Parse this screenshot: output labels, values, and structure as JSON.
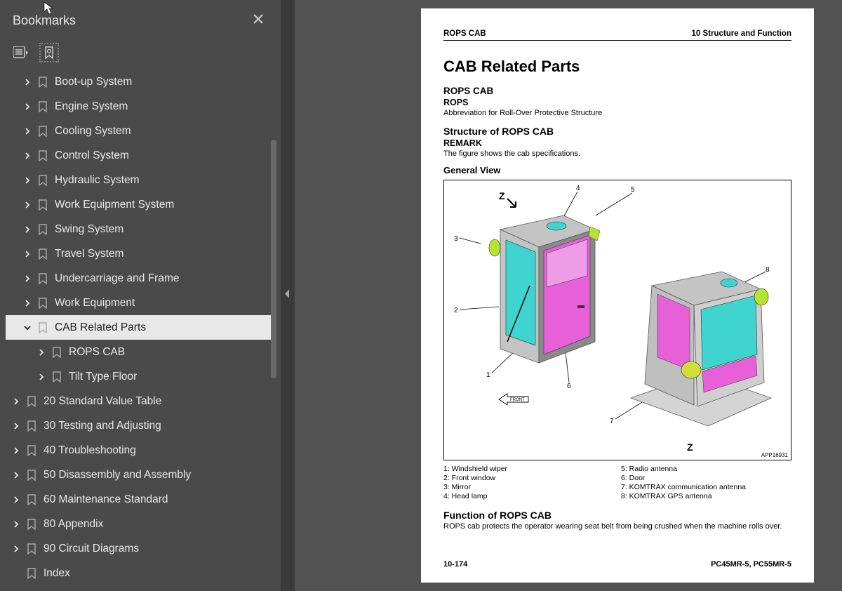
{
  "sidebar": {
    "title": "Bookmarks",
    "items": [
      {
        "label": "Boot-up System",
        "indent": 1,
        "expand": "closed",
        "selected": false
      },
      {
        "label": "Engine System",
        "indent": 1,
        "expand": "closed",
        "selected": false
      },
      {
        "label": "Cooling System",
        "indent": 1,
        "expand": "closed",
        "selected": false
      },
      {
        "label": "Control System",
        "indent": 1,
        "expand": "closed",
        "selected": false
      },
      {
        "label": "Hydraulic System",
        "indent": 1,
        "expand": "closed",
        "selected": false
      },
      {
        "label": "Work Equipment System",
        "indent": 1,
        "expand": "closed",
        "selected": false
      },
      {
        "label": "Swing System",
        "indent": 1,
        "expand": "closed",
        "selected": false
      },
      {
        "label": "Travel System",
        "indent": 1,
        "expand": "closed",
        "selected": false
      },
      {
        "label": "Undercarriage and Frame",
        "indent": 1,
        "expand": "closed",
        "selected": false
      },
      {
        "label": "Work Equipment",
        "indent": 1,
        "expand": "closed",
        "selected": false
      },
      {
        "label": "CAB Related Parts",
        "indent": 1,
        "expand": "open",
        "selected": true
      },
      {
        "label": "ROPS CAB",
        "indent": 2,
        "expand": "closed",
        "selected": false
      },
      {
        "label": "Tilt Type Floor",
        "indent": 2,
        "expand": "closed",
        "selected": false
      },
      {
        "label": "20 Standard Value Table",
        "indent": 0,
        "expand": "closed",
        "selected": false
      },
      {
        "label": "30 Testing and Adjusting",
        "indent": 0,
        "expand": "closed",
        "selected": false
      },
      {
        "label": "40 Troubleshooting",
        "indent": 0,
        "expand": "closed",
        "selected": false
      },
      {
        "label": "50 Disassembly and Assembly",
        "indent": 0,
        "expand": "closed",
        "selected": false
      },
      {
        "label": "60 Maintenance Standard",
        "indent": 0,
        "expand": "closed",
        "selected": false
      },
      {
        "label": "80 Appendix",
        "indent": 0,
        "expand": "closed",
        "selected": false
      },
      {
        "label": "90 Circuit Diagrams",
        "indent": 0,
        "expand": "closed",
        "selected": false
      },
      {
        "label": "Index",
        "indent": 0,
        "expand": "none",
        "selected": false
      }
    ]
  },
  "page": {
    "header_left": "ROPS CAB",
    "header_right": "10 Structure and Function",
    "title": "CAB Related Parts",
    "h2": "ROPS CAB",
    "h3": "ROPS",
    "abbrev": "Abbreviation for Roll-Over Protective Structure",
    "struct_head": "Structure of ROPS CAB",
    "remark_label": "REMARK",
    "remark_text": "The figure shows the cab specifications.",
    "general_view": "General View",
    "fig_code": "APP16931",
    "z_label": "Z",
    "front_label": "FRONT",
    "callouts": {
      "c1": "1",
      "c2": "2",
      "c3": "3",
      "c4": "4",
      "c5": "5",
      "c6": "6",
      "c7": "7",
      "c8": "8"
    },
    "legend_left": [
      "1: Windshield wiper",
      "2: Front window",
      "3: Mirror",
      "4: Head lamp"
    ],
    "legend_right": [
      "5: Radio antenna",
      "6: Door",
      "7: KOMTRAX communication antenna",
      "8: KOMTRAX GPS antenna"
    ],
    "func_head": "Function of ROPS CAB",
    "func_text": "ROPS cab protects the operator wearing seat belt from being crushed when the machine rolls over.",
    "footer_left": "10-174",
    "footer_right": "PC45MR-5, PC55MR-5"
  },
  "colors": {
    "cab_glass": "#3fd4cf",
    "cab_door": "#e860d8",
    "cab_accent": "#b5e332",
    "cab_body": "#c4c4c4",
    "cab_body_dark": "#8a8a8a",
    "line": "#000000"
  }
}
